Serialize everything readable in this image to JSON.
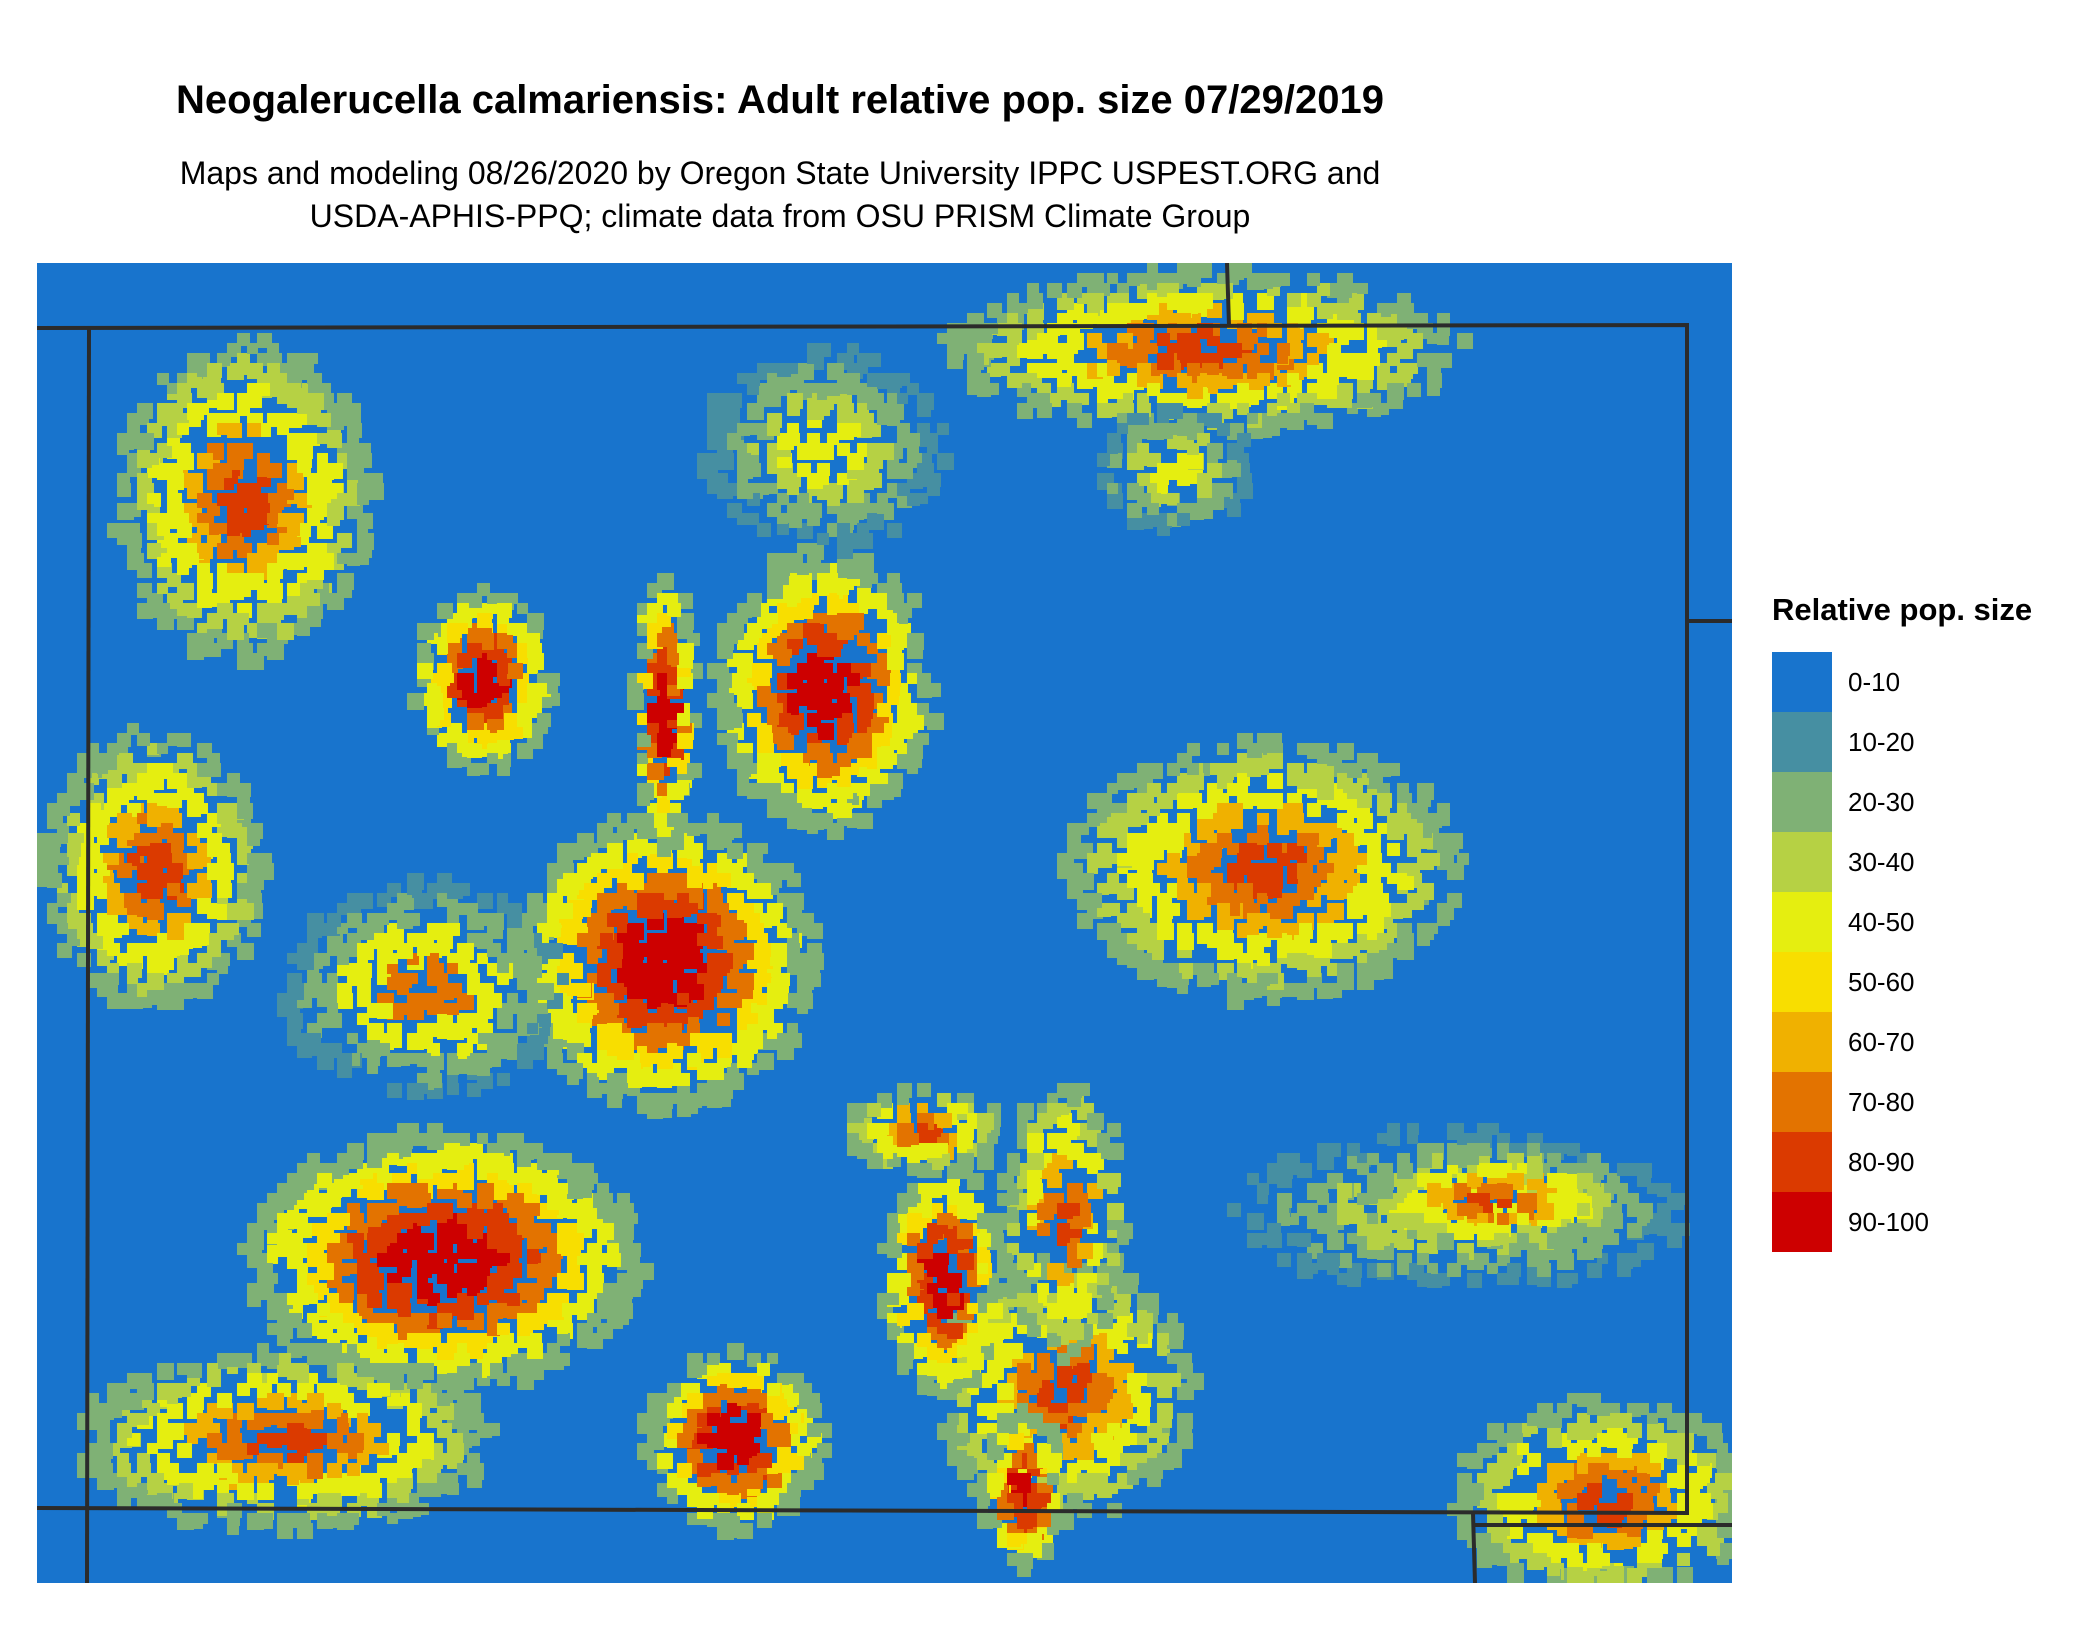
{
  "title": "Neogalerucella calmariensis: Adult relative pop. size 07/29/2019",
  "subtitle_line1": "Maps and modeling 08/26/2020 by Oregon State University IPPC USPEST.ORG and",
  "subtitle_line2": "USDA-APHIS-PPQ; climate data from OSU PRISM Climate Group",
  "legend": {
    "title": "Relative pop. size",
    "items": [
      {
        "label": "0-10",
        "color": "#1874cd"
      },
      {
        "label": "10-20",
        "color": "#468fa2"
      },
      {
        "label": "20-30",
        "color": "#7fb175"
      },
      {
        "label": "30-40",
        "color": "#b6d144"
      },
      {
        "label": "40-50",
        "color": "#e5ee10"
      },
      {
        "label": "50-60",
        "color": "#f8de00"
      },
      {
        "label": "60-70",
        "color": "#f0b100"
      },
      {
        "label": "70-80",
        "color": "#e37300"
      },
      {
        "label": "80-90",
        "color": "#db3a00"
      },
      {
        "label": "90-100",
        "color": "#cd0000"
      }
    ]
  },
  "map": {
    "background_color": "#1874cd",
    "boundary_color": "#2b2b2b"
  }
}
